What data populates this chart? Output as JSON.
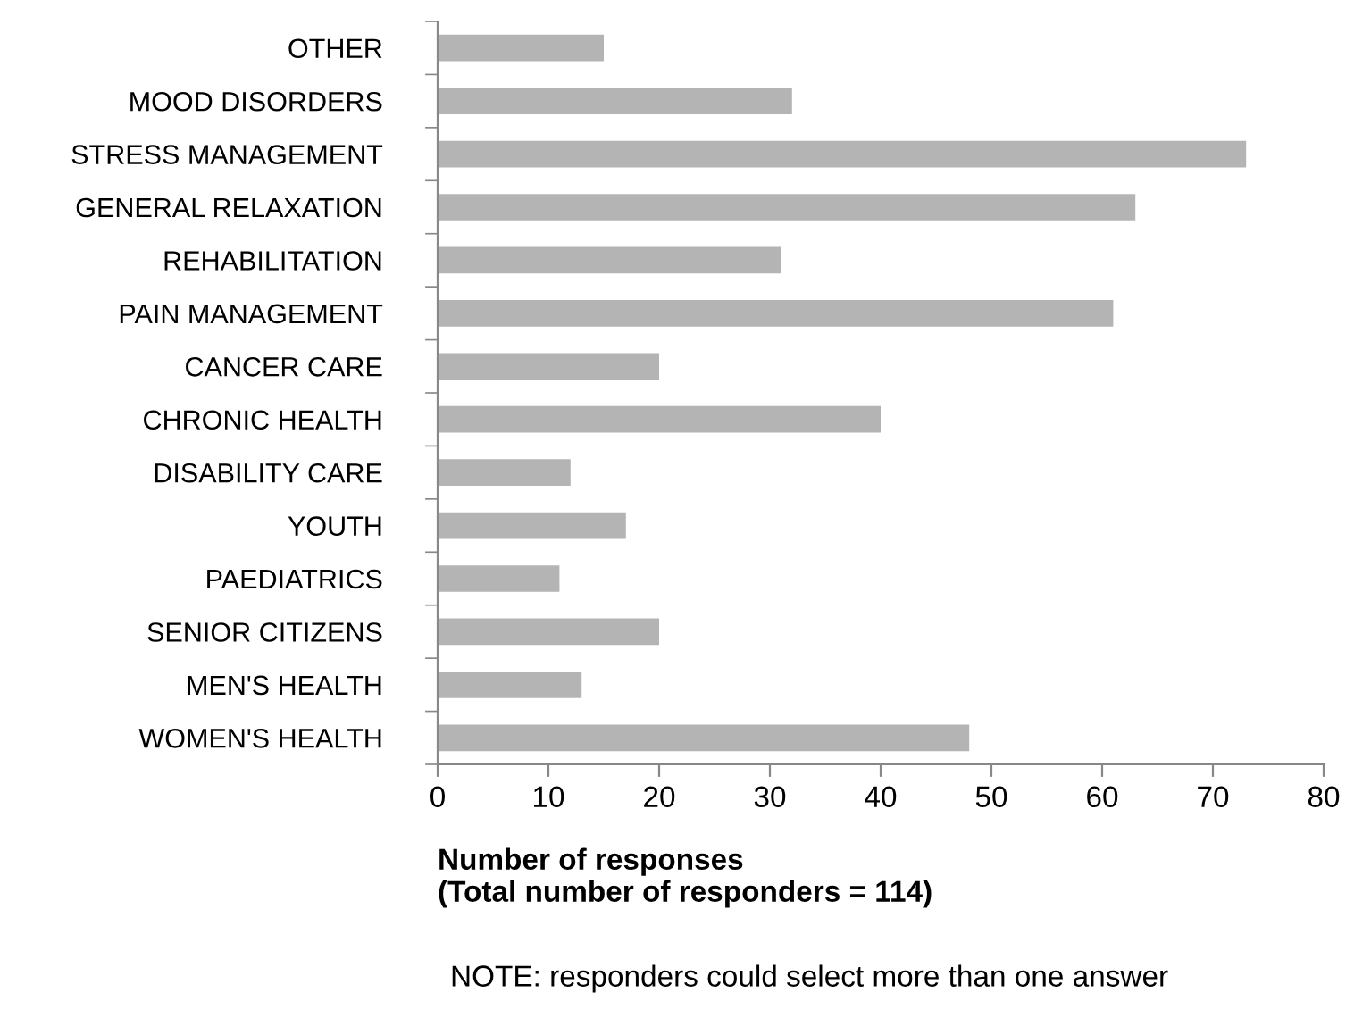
{
  "chart_data": {
    "type": "bar",
    "orientation": "horizontal",
    "categories": [
      "OTHER",
      "MOOD DISORDERS",
      "STRESS MANAGEMENT",
      "GENERAL RELAXATION",
      "REHABILITATION",
      "PAIN MANAGEMENT",
      "CANCER CARE",
      "CHRONIC HEALTH",
      "DISABILITY CARE",
      "YOUTH",
      "PAEDIATRICS",
      "SENIOR CITIZENS",
      "MEN'S HEALTH",
      "WOMEN'S HEALTH"
    ],
    "values": [
      15,
      32,
      73,
      63,
      31,
      61,
      20,
      40,
      12,
      17,
      11,
      20,
      13,
      48
    ],
    "color": "#b4b4b4",
    "xlim": [
      0,
      80
    ],
    "xticks": [
      0,
      10,
      20,
      30,
      40,
      50,
      60,
      70,
      80
    ],
    "xlabel": "Number of responses\n(Total number of responders = 114)",
    "annotations": [
      "NOTE: responders could select more than one answer"
    ],
    "grid": false,
    "legend": false
  }
}
